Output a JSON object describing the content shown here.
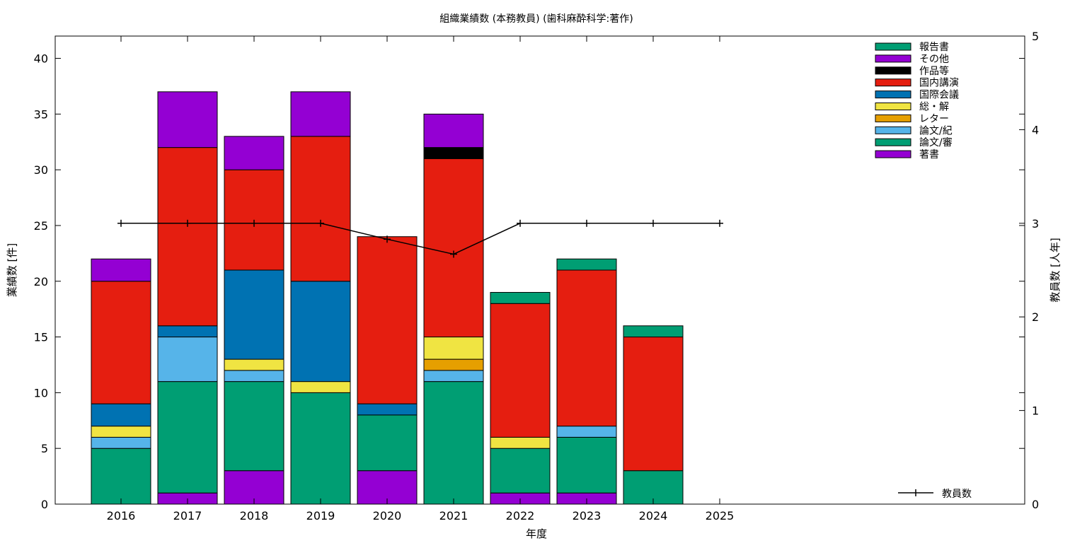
{
  "chart_data": {
    "type": "bar",
    "stacked": true,
    "title": "組織業績数 (本務教員) (歯科麻酔科学:著作)",
    "xlabel": "年度",
    "ylabel": "業績数 [件]",
    "y2label": "教員数 [人年]",
    "ylim": [
      0,
      42
    ],
    "y2lim": [
      0,
      5
    ],
    "yticks": [
      0,
      5,
      10,
      15,
      20,
      25,
      30,
      35,
      40
    ],
    "y2ticks": [
      0,
      1,
      2,
      3,
      4,
      5
    ],
    "categories": [
      "2016",
      "2017",
      "2018",
      "2019",
      "2020",
      "2021",
      "2022",
      "2023",
      "2024",
      "2025"
    ],
    "series": [
      {
        "name": "著書",
        "color": "#9400d3",
        "values": [
          0,
          1,
          3,
          0,
          3,
          0,
          1,
          1,
          0,
          0
        ]
      },
      {
        "name": "論文/審",
        "color": "#009e73",
        "values": [
          5,
          10,
          8,
          10,
          5,
          11,
          4,
          5,
          3,
          0
        ]
      },
      {
        "name": "論文/紀",
        "color": "#56b4e9",
        "values": [
          1,
          4,
          1,
          0,
          0,
          1,
          0,
          1,
          0,
          0
        ]
      },
      {
        "name": "レター",
        "color": "#e69f00",
        "values": [
          0,
          0,
          0,
          0,
          0,
          1,
          0,
          0,
          0,
          0
        ]
      },
      {
        "name": "総・解",
        "color": "#f0e442",
        "values": [
          1,
          0,
          1,
          1,
          0,
          2,
          1,
          0,
          0,
          0
        ]
      },
      {
        "name": "国際会議",
        "color": "#0072b2",
        "values": [
          2,
          1,
          8,
          9,
          1,
          0,
          0,
          0,
          0,
          0
        ]
      },
      {
        "name": "国内講演",
        "color": "#e51e10",
        "values": [
          11,
          16,
          9,
          13,
          15,
          16,
          12,
          14,
          12,
          0
        ]
      },
      {
        "name": "作品等",
        "color": "#000000",
        "values": [
          0,
          0,
          0,
          0,
          0,
          1,
          0,
          0,
          0,
          0
        ]
      },
      {
        "name": "その他",
        "color": "#9400d3",
        "values": [
          2,
          5,
          3,
          4,
          0,
          3,
          0,
          0,
          0,
          0
        ]
      },
      {
        "name": "報告書",
        "color": "#009e73",
        "values": [
          0,
          0,
          0,
          0,
          0,
          0,
          1,
          1,
          1,
          0
        ]
      }
    ],
    "line": {
      "name": "教員数",
      "axis": "y2",
      "color": "#000000",
      "values": [
        3,
        3,
        3,
        3,
        2.83,
        2.67,
        3,
        3,
        3,
        3
      ]
    },
    "legend_position": "top-right"
  }
}
